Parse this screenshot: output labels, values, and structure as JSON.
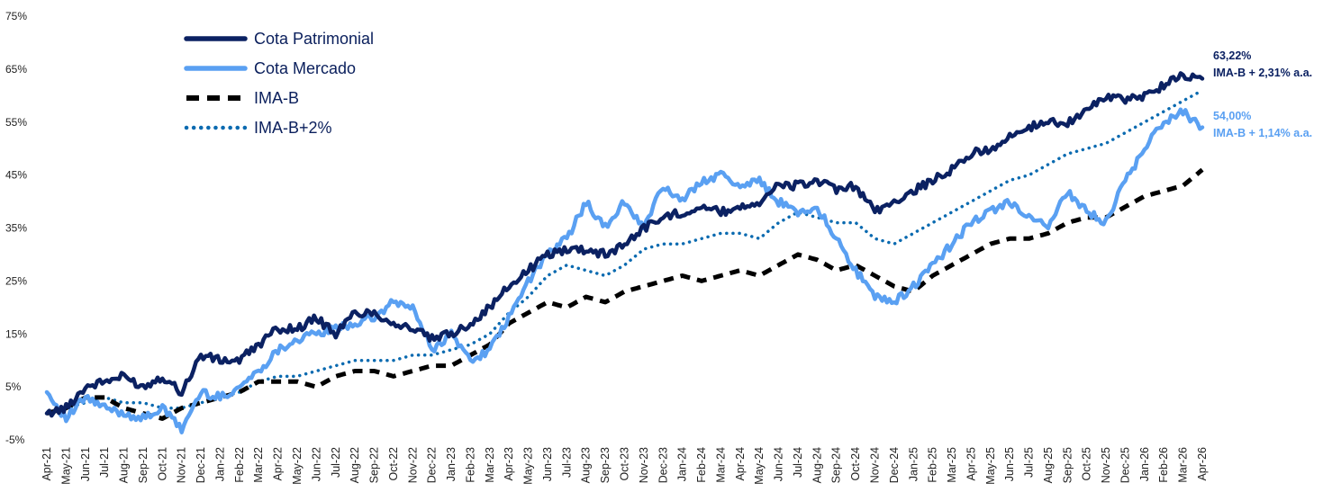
{
  "chart_data": {
    "type": "line",
    "ylim": [
      -5,
      75
    ],
    "y_ticks": [
      "-5%",
      "5%",
      "15%",
      "25%",
      "35%",
      "45%",
      "55%",
      "65%",
      "75%"
    ],
    "y_tick_values": [
      -5,
      5,
      15,
      25,
      35,
      45,
      55,
      65,
      75
    ],
    "grid": false,
    "legend_position": "top-left",
    "x": [
      "Apr-21",
      "May-21",
      "Jun-21",
      "Jul-21",
      "Aug-21",
      "Sep-21",
      "Oct-21",
      "Nov-21",
      "Dec-21",
      "Jan-22",
      "Feb-22",
      "Mar-22",
      "Apr-22",
      "May-22",
      "Jun-22",
      "Jul-22",
      "Aug-22",
      "Sep-22",
      "Oct-22",
      "Nov-22",
      "Dec-22",
      "Jan-23",
      "Feb-23",
      "Mar-23",
      "Apr-23",
      "May-23",
      "Jun-23",
      "Jul-23",
      "Aug-23",
      "Sep-23",
      "Oct-23",
      "Nov-23",
      "Dec-23",
      "Jan-24",
      "Feb-24",
      "Mar-24",
      "Apr-24",
      "May-24",
      "Jun-24",
      "Jul-24",
      "Aug-24",
      "Sep-24",
      "Oct-24",
      "Nov-24",
      "Dec-24",
      "Jan-25",
      "Feb-25",
      "Mar-25",
      "Apr-25",
      "May-25",
      "Jun-25",
      "Jul-25",
      "Aug-25",
      "Sep-25",
      "Oct-25",
      "Nov-25",
      "Dec-25",
      "Jan-26",
      "Feb-26",
      "Mar-26",
      "Apr-26"
    ],
    "series": [
      {
        "name": "Cota Patrimonial",
        "color": "#0b2162",
        "style": "solid",
        "values": [
          0,
          1,
          5,
          6,
          7,
          5,
          7,
          4,
          11,
          10,
          10,
          13,
          16,
          16,
          18,
          15,
          19,
          19,
          17,
          16,
          14,
          15,
          17,
          20,
          24,
          27,
          30,
          31,
          31,
          30,
          32,
          35,
          37,
          38,
          39,
          38,
          39,
          40,
          43,
          43,
          44,
          42,
          43,
          38,
          40,
          42,
          44,
          46,
          49,
          50,
          52,
          54,
          55,
          55,
          57,
          60,
          59,
          60,
          62,
          64,
          63.22
        ]
      },
      {
        "name": "Cota Mercado",
        "color": "#5aa0f2",
        "style": "solid",
        "values": [
          4,
          -1,
          3,
          1,
          0,
          -1,
          1,
          -3,
          4,
          3,
          5,
          8,
          12,
          14,
          15,
          16,
          17,
          18,
          21,
          20,
          12,
          15,
          10,
          12,
          18,
          25,
          30,
          33,
          40,
          35,
          40,
          35,
          43,
          40,
          44,
          45,
          43,
          44,
          40,
          38,
          39,
          33,
          27,
          22,
          21,
          24,
          28,
          32,
          36,
          38,
          40,
          37,
          35,
          42,
          38,
          36,
          44,
          50,
          55,
          57,
          54.0
        ]
      },
      {
        "name": "IMA-B",
        "color": "#000000",
        "style": "dashed",
        "values": [
          0,
          1,
          3,
          3,
          1,
          0,
          -1,
          1,
          2,
          3,
          4,
          6,
          6,
          6,
          5,
          7,
          8,
          8,
          7,
          8,
          9,
          9,
          11,
          13,
          17,
          19,
          21,
          20,
          22,
          21,
          23,
          24,
          25,
          26,
          25,
          26,
          27,
          26,
          28,
          30,
          29,
          27,
          28,
          26,
          24,
          23,
          26,
          28,
          30,
          32,
          33,
          33,
          34,
          36,
          37,
          37,
          39,
          41,
          42,
          43,
          46
        ]
      },
      {
        "name": "IMA-B+2%",
        "color": "#0a6ab0",
        "style": "dotted",
        "values": [
          0,
          1,
          2,
          3,
          2,
          2,
          1,
          1,
          2,
          3,
          4,
          6,
          7,
          7,
          8,
          9,
          10,
          10,
          10,
          11,
          11,
          12,
          13,
          15,
          19,
          22,
          26,
          28,
          27,
          26,
          28,
          31,
          32,
          32,
          33,
          34,
          34,
          33,
          36,
          38,
          37,
          36,
          36,
          33,
          32,
          34,
          36,
          38,
          40,
          42,
          44,
          45,
          47,
          49,
          50,
          51,
          53,
          55,
          57,
          59,
          61
        ]
      }
    ],
    "annotations": [
      {
        "series": "Cota Patrimonial",
        "color": "#0b2162",
        "value_label": "63,22%",
        "note": "IMA-B + 2,31% a.a."
      },
      {
        "series": "Cota Mercado",
        "color": "#5aa0f2",
        "value_label": "54,00%",
        "note": "IMA-B + 1,14% a.a."
      }
    ]
  }
}
